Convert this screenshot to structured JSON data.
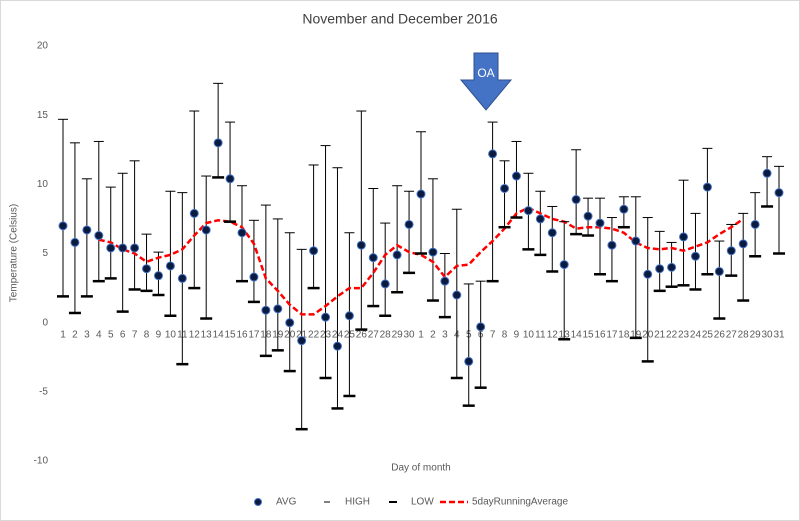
{
  "chart_data": {
    "type": "line",
    "title": "November and December 2016",
    "x_label": "Day of month",
    "y_label": "Temperature (Celsius)",
    "annotation": "OA",
    "categories": [
      "1",
      "2",
      "3",
      "4",
      "5",
      "6",
      "7",
      "8",
      "9",
      "10",
      "11",
      "12",
      "13",
      "14",
      "15",
      "16",
      "17",
      "18",
      "19",
      "20",
      "21",
      "22",
      "23",
      "24",
      "25",
      "26",
      "27",
      "28",
      "29",
      "30",
      "1",
      "2",
      "3",
      "4",
      "5",
      "6",
      "7",
      "8",
      "9",
      "10",
      "11",
      "12",
      "13",
      "14",
      "15",
      "16",
      "17",
      "18",
      "19",
      "20",
      "21",
      "22",
      "23",
      "24",
      "25",
      "26",
      "27",
      "28",
      "29",
      "30",
      "31"
    ],
    "ylim": [
      -10,
      20
    ],
    "yticks": [
      -10,
      -5,
      0,
      5,
      10,
      15,
      20
    ],
    "grid": false,
    "legend": "bottom",
    "series": [
      {
        "name": "AVG",
        "color": "#0b1a3f",
        "marker": "circle",
        "values": [
          7.0,
          5.8,
          6.7,
          6.3,
          5.4,
          5.4,
          5.4,
          3.9,
          3.4,
          4.1,
          3.2,
          7.9,
          6.7,
          13.0,
          10.4,
          6.5,
          3.3,
          0.9,
          1.0,
          0.0,
          -1.3,
          5.2,
          0.4,
          -1.7,
          0.5,
          5.6,
          4.7,
          2.8,
          4.9,
          7.1,
          9.3,
          5.1,
          3.0,
          2.0,
          -2.8,
          -0.3,
          12.2,
          9.7,
          10.6,
          8.1,
          7.5,
          6.5,
          4.2,
          8.9,
          7.7,
          7.2,
          5.6,
          8.2,
          5.9,
          3.5,
          3.9,
          4.0,
          6.2,
          4.8,
          9.8,
          3.7,
          5.2,
          5.7,
          7.1,
          10.8,
          9.4
        ]
      },
      {
        "name": "HIGH",
        "color": "#000000",
        "marker": "dash",
        "values": [
          14.7,
          13.0,
          10.4,
          13.1,
          9.8,
          10.8,
          11.7,
          6.4,
          5.1,
          9.5,
          9.4,
          15.3,
          10.6,
          17.3,
          14.5,
          9.9,
          7.4,
          8.5,
          7.5,
          6.5,
          5.3,
          11.4,
          12.8,
          11.2,
          6.5,
          15.3,
          9.7,
          7.2,
          9.9,
          9.5,
          13.8,
          10.4,
          5.0,
          8.2,
          2.8,
          3.0,
          14.5,
          11.7,
          13.1,
          10.8,
          9.5,
          8.4,
          7.3,
          12.5,
          9.0,
          9.0,
          7.6,
          9.1,
          9.1,
          7.6,
          6.6,
          5.8,
          10.3,
          7.9,
          12.6,
          5.9,
          7.1,
          7.9,
          9.4,
          12.0,
          11.3
        ]
      },
      {
        "name": "LOW",
        "color": "#000000",
        "marker": "thick-dash",
        "values": [
          1.9,
          0.7,
          1.9,
          3.0,
          3.2,
          0.8,
          2.4,
          2.3,
          2.0,
          0.5,
          -3.0,
          2.5,
          0.3,
          10.5,
          7.3,
          3.0,
          1.5,
          -2.4,
          -2.0,
          -3.5,
          -7.7,
          2.5,
          -4.0,
          -6.2,
          -5.3,
          -0.5,
          1.2,
          0.5,
          2.2,
          3.6,
          5.0,
          1.6,
          0.4,
          -4.0,
          -6.0,
          -4.7,
          3.0,
          6.9,
          7.6,
          5.3,
          4.9,
          3.7,
          -1.2,
          6.4,
          6.3,
          3.5,
          3.0,
          6.9,
          -1.1,
          -2.8,
          2.3,
          2.6,
          2.7,
          2.4,
          3.5,
          0.3,
          3.4,
          1.6,
          4.8,
          8.4,
          5.0
        ]
      },
      {
        "name": "5dayRunningAverage",
        "color": "#ff0000",
        "marker": "dashed-line",
        "values": [
          null,
          null,
          null,
          6.0,
          5.8,
          5.3,
          5.0,
          4.4,
          4.7,
          4.9,
          5.3,
          6.3,
          7.2,
          7.4,
          7.3,
          6.9,
          5.7,
          3.2,
          2.3,
          1.3,
          0.6,
          0.6,
          1.2,
          1.9,
          2.5,
          2.5,
          3.6,
          4.9,
          5.6,
          5.1,
          4.9,
          4.4,
          3.3,
          4.1,
          4.2,
          5.1,
          5.9,
          6.8,
          7.9,
          8.3,
          7.9,
          7.5,
          7.3,
          6.8,
          6.9,
          6.9,
          6.8,
          6.5,
          5.8,
          5.4,
          5.3,
          5.4,
          5.2,
          5.5,
          5.8,
          6.4,
          6.9,
          7.5,
          null,
          null,
          null
        ]
      }
    ]
  }
}
